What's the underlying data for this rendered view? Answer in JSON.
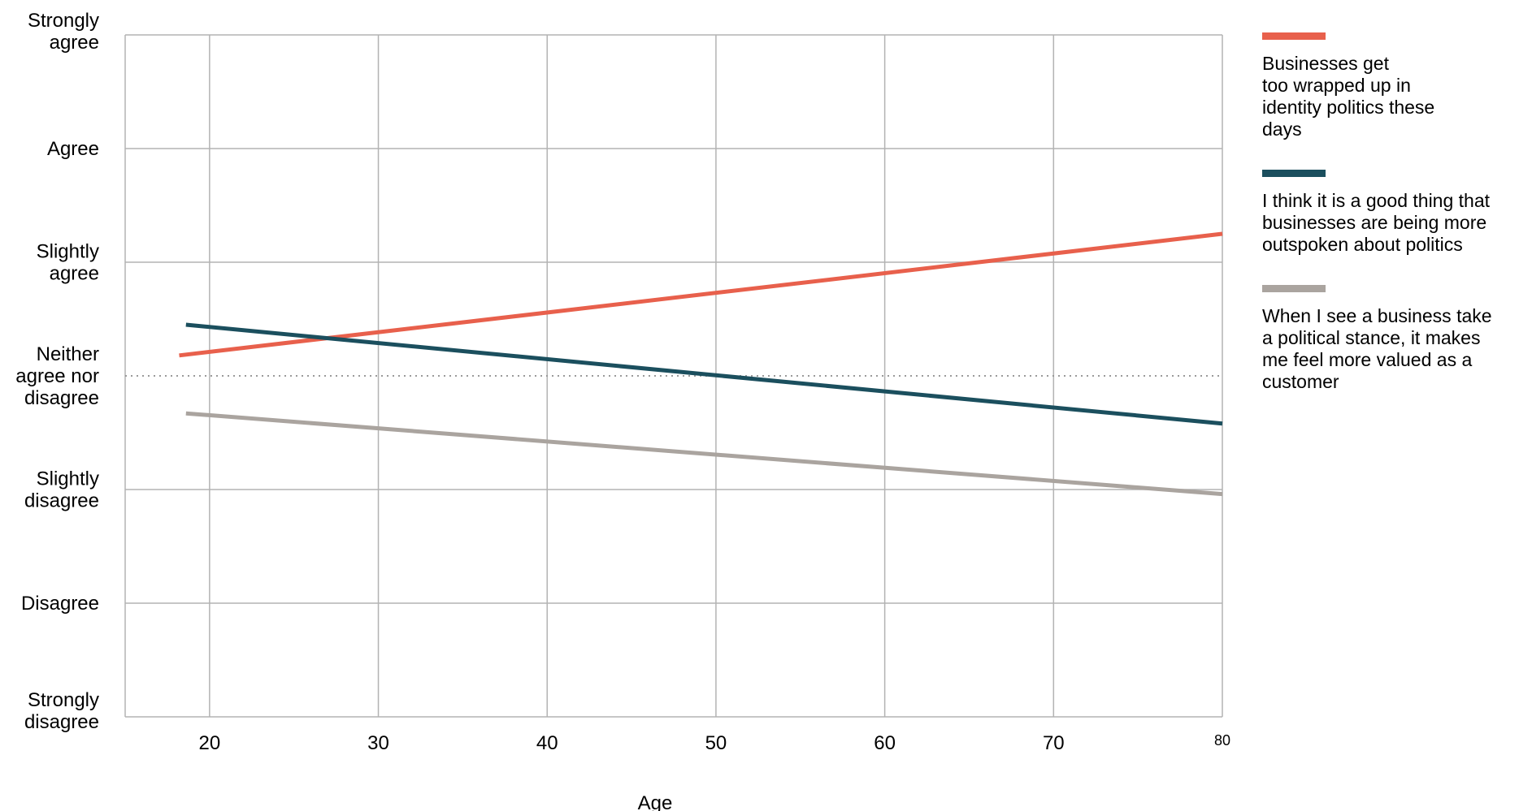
{
  "chart_data": {
    "type": "line",
    "title": "",
    "xlabel": "Age",
    "ylabel": "",
    "xlim": [
      15,
      80
    ],
    "ylim": [
      1,
      7
    ],
    "x_ticks": [
      {
        "value": 20,
        "label": "20"
      },
      {
        "value": 30,
        "label": "30"
      },
      {
        "value": 40,
        "label": "40"
      },
      {
        "value": 50,
        "label": "50"
      },
      {
        "value": 60,
        "label": "60"
      },
      {
        "value": 70,
        "label": "70"
      },
      {
        "value": 80,
        "label": "80"
      }
    ],
    "y_ticks": [
      {
        "value": 7,
        "lines": [
          "Strongly",
          "agree"
        ]
      },
      {
        "value": 6,
        "lines": [
          "Agree"
        ]
      },
      {
        "value": 5,
        "lines": [
          "Slightly",
          "agree"
        ]
      },
      {
        "value": 4,
        "lines": [
          "Neither",
          "agree nor",
          "disagree"
        ]
      },
      {
        "value": 3,
        "lines": [
          "Slightly",
          "disagree"
        ]
      },
      {
        "value": 2,
        "lines": [
          "Disagree"
        ]
      },
      {
        "value": 1,
        "lines": [
          "Strongly",
          "disagree"
        ]
      }
    ],
    "reference_line": {
      "y": 4,
      "style": "dotted"
    },
    "grid": true,
    "legend_position": "right",
    "series": [
      {
        "name": "Businesses  get\ntoo wrapped up in\nidentity politics these\ndays",
        "color": "#e8604c",
        "x": [
          18.2,
          80
        ],
        "y": [
          4.18,
          5.25
        ]
      },
      {
        "name": "I think it is a good thing that\nbusinesses are being more\noutspoken about politics",
        "color": "#1b4f5e",
        "x": [
          18.6,
          80
        ],
        "y": [
          4.45,
          3.58
        ]
      },
      {
        "name": "When I see a business take\na political stance, it makes\nme feel more valued as a\ncustomer",
        "color": "#aaa49f",
        "x": [
          18.6,
          80
        ],
        "y": [
          3.67,
          2.96
        ]
      }
    ]
  }
}
